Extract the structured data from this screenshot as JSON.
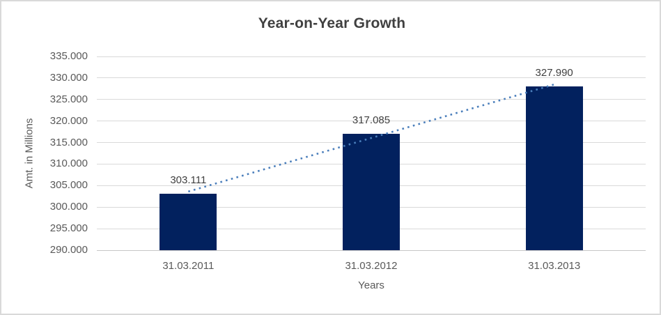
{
  "chart_data": {
    "type": "bar",
    "title": "Year-on-Year Growth",
    "xlabel": "Years",
    "ylabel": "Amt. in Millions",
    "categories": [
      "31.03.2011",
      "31.03.2012",
      "31.03.2013"
    ],
    "values": [
      303111,
      317085,
      327990
    ],
    "data_labels": [
      "303.111",
      "317.085",
      "327.990"
    ],
    "ylim": [
      290000,
      335000
    ],
    "ytick_step": 5000,
    "yticks": [
      {
        "value": 290000,
        "label": "290.000"
      },
      {
        "value": 295000,
        "label": "295.000"
      },
      {
        "value": 300000,
        "label": "300.000"
      },
      {
        "value": 305000,
        "label": "305.000"
      },
      {
        "value": 310000,
        "label": "310.000"
      },
      {
        "value": 315000,
        "label": "315.000"
      },
      {
        "value": 320000,
        "label": "320.000"
      },
      {
        "value": 325000,
        "label": "325.000"
      },
      {
        "value": 330000,
        "label": "330.000"
      },
      {
        "value": 335000,
        "label": "335.000"
      }
    ],
    "grid": true,
    "legend": "none",
    "trendline": {
      "type": "linear",
      "style": "dotted"
    },
    "colors": {
      "bar": "#02215E",
      "trendline": "#4A7EBB",
      "gridline": "#D9D9D9",
      "axis_line": "#C6C6C6",
      "border": "#D9D9D9",
      "title_text": "#404040",
      "axis_text": "#595959",
      "data_label_text": "#404040",
      "background": "#FFFFFF"
    }
  }
}
